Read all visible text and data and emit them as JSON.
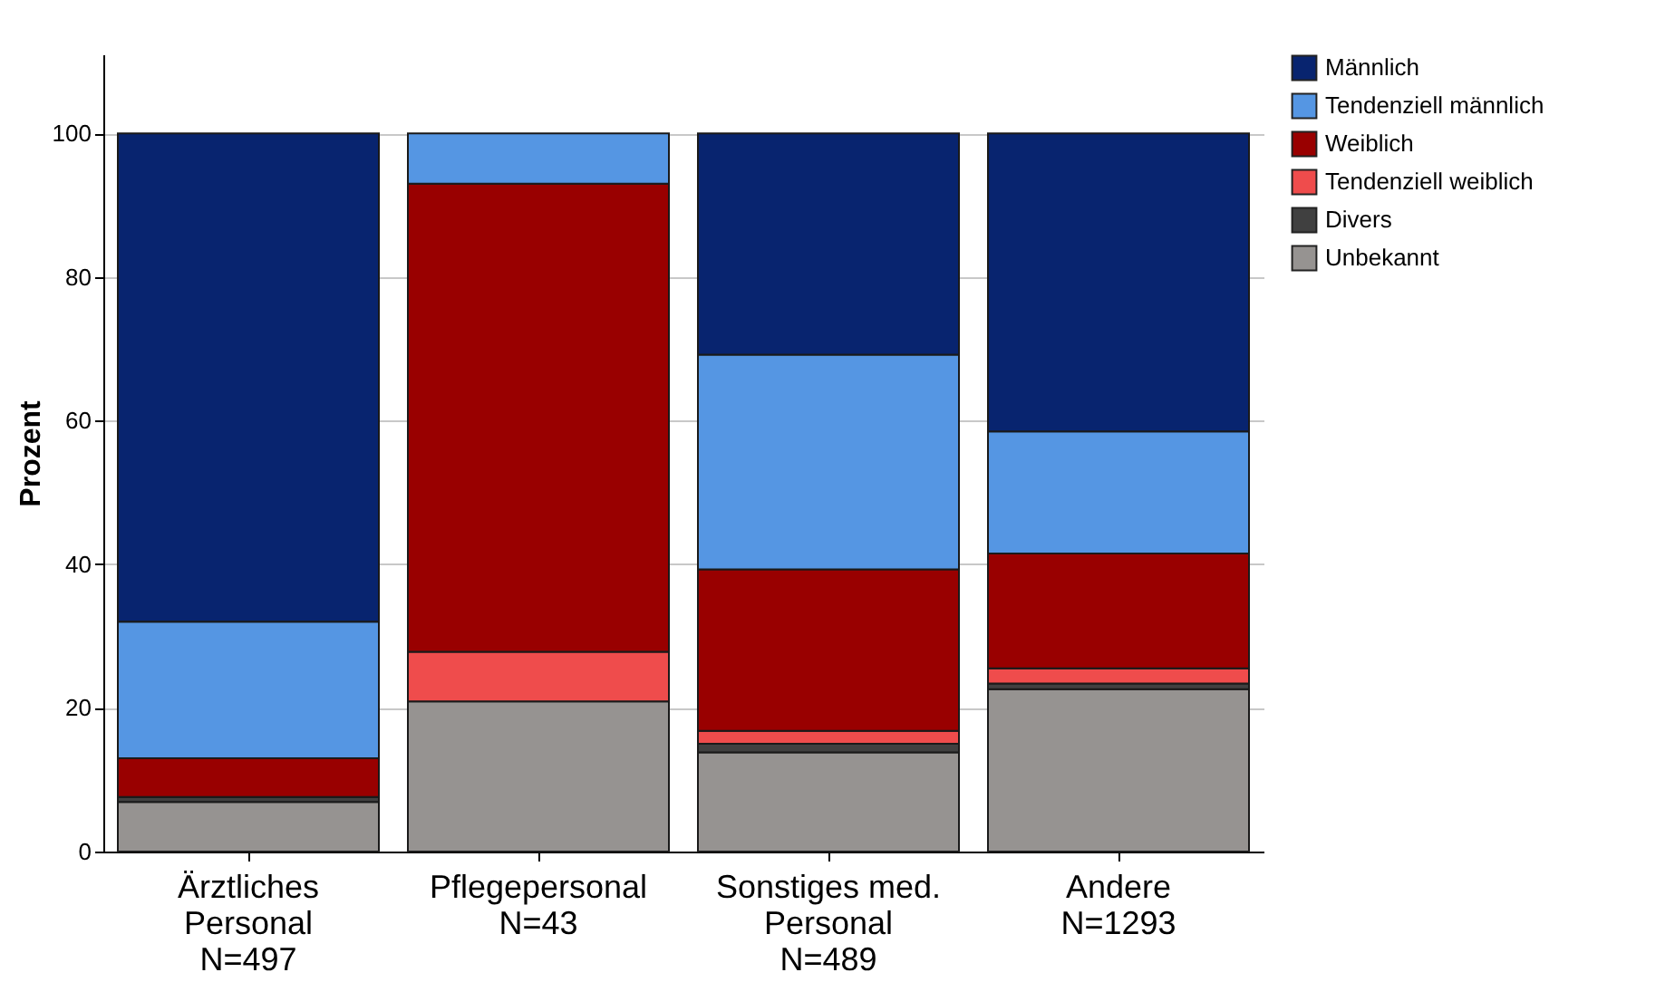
{
  "chart_data": {
    "type": "bar",
    "stacked": true,
    "ylabel": "Prozent",
    "categories": [
      "Ärztliches\nPersonal\nN=497",
      "Pflegepersonal\nN=43",
      "Sonstiges med.\nPersonal\nN=489",
      "Andere\nN=1293"
    ],
    "series": [
      {
        "name": "Unbekannt",
        "color": "#969391",
        "values": [
          6.9,
          20.9,
          13.8,
          22.6
        ]
      },
      {
        "name": "Divers",
        "color": "#404040",
        "values": [
          0.7,
          0,
          1.2,
          0.8
        ]
      },
      {
        "name": "Tendenziell weiblich",
        "color": "#ef4c4c",
        "values": [
          0,
          6.9,
          1.8,
          2.1
        ]
      },
      {
        "name": "Weiblich",
        "color": "#990000",
        "values": [
          5.4,
          65.2,
          22.5,
          16.0
        ]
      },
      {
        "name": "Tendenziell männlich",
        "color": "#5596e3",
        "values": [
          19.0,
          7.0,
          29.9,
          17.0
        ]
      },
      {
        "name": "Männlich",
        "color": "#08246f",
        "values": [
          68.0,
          0,
          30.8,
          41.5
        ]
      }
    ],
    "ylim": [
      0,
      111
    ],
    "yticks": [
      0,
      20,
      40,
      60,
      80,
      100
    ],
    "grid": "y",
    "legend": "top right"
  }
}
